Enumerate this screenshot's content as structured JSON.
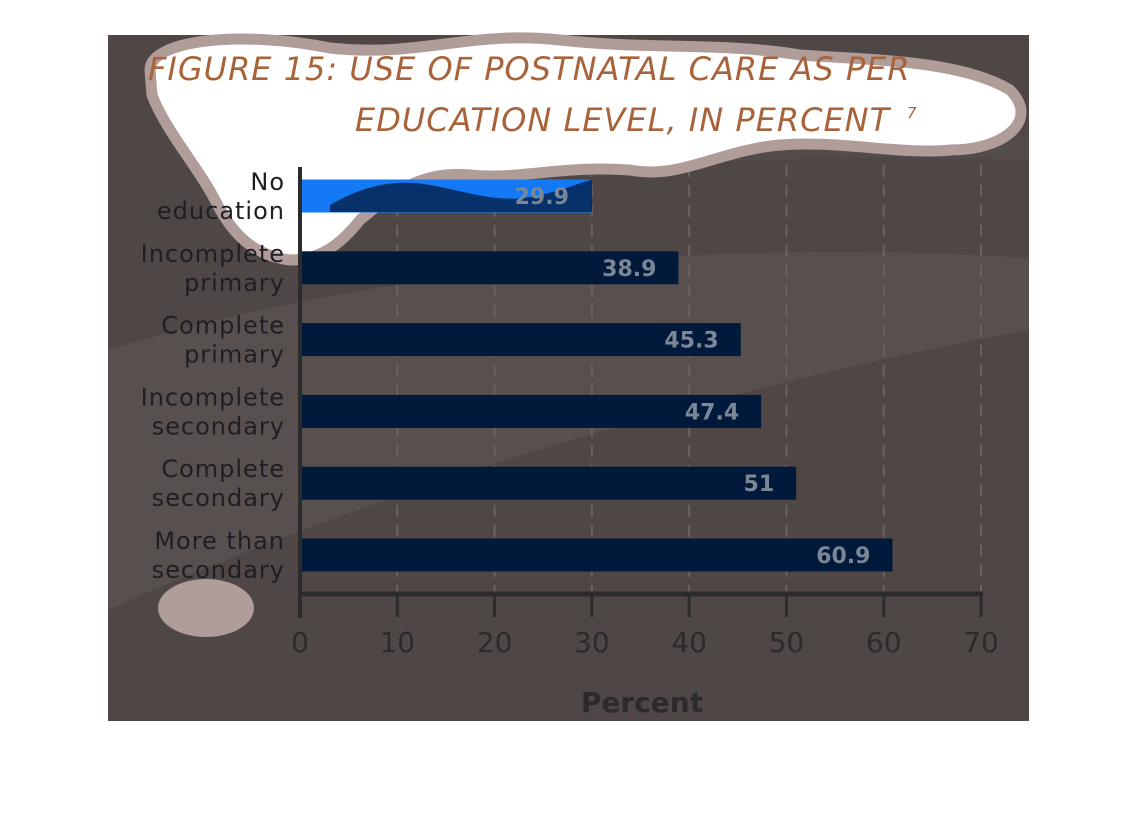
{
  "title": {
    "line1": "FIGURE 15: USE OF POSTNATAL CARE AS PER",
    "line2": "EDUCATION LEVEL, IN PERCENT",
    "footnote": "7"
  },
  "colors": {
    "background": "#4f4745",
    "bar": "#011a3b",
    "highlight_bar": "#1479f5",
    "title": "#a8633a",
    "cloud_fill": "#ffffff",
    "cloud_stroke": "#b09d9a",
    "blob": "#b09d9a"
  },
  "chart_data": {
    "type": "bar",
    "orientation": "horizontal",
    "categories": [
      [
        "No",
        "education"
      ],
      [
        "Incomplete",
        "primary"
      ],
      [
        "Complete",
        "primary"
      ],
      [
        "Incomplete",
        "secondary"
      ],
      [
        "Complete",
        "secondary"
      ],
      [
        "More than",
        "secondary"
      ]
    ],
    "values": [
      29.9,
      38.9,
      45.3,
      47.4,
      51,
      60.9
    ],
    "value_labels": [
      "29.9",
      "38.9",
      "45.3",
      "47.4",
      "51",
      "60.9"
    ],
    "xlabel": "Percent",
    "ylabel": "",
    "xlim": [
      0,
      70
    ],
    "xticks": [
      0,
      10,
      20,
      30,
      40,
      50,
      60,
      70
    ],
    "grid": "vertical dashed"
  }
}
